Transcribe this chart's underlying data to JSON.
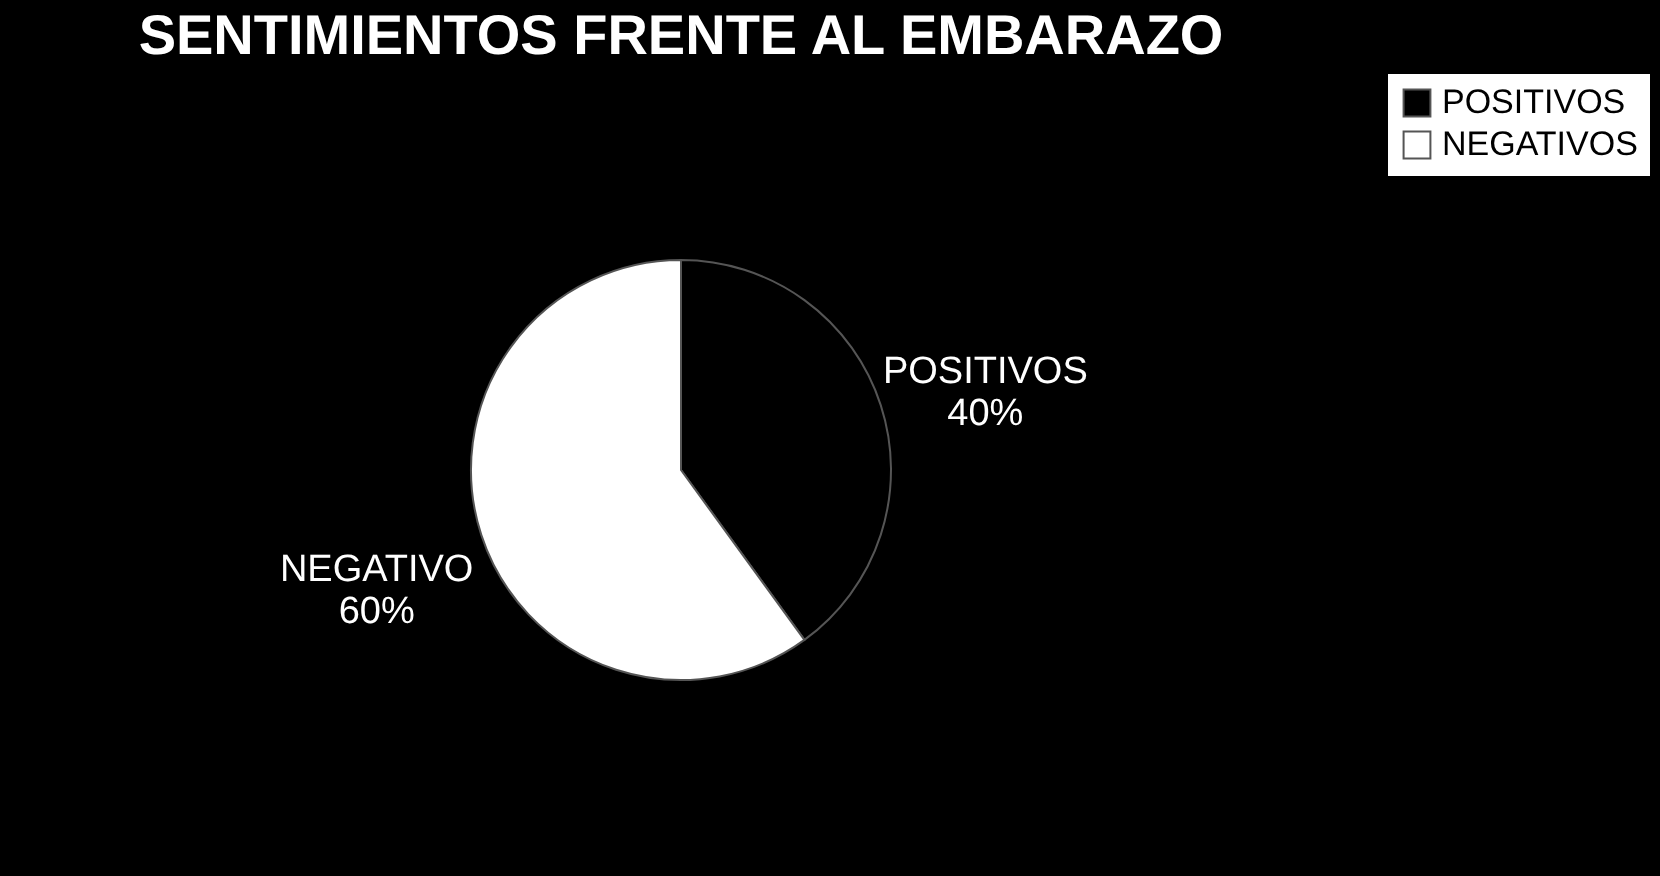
{
  "chart_data": {
    "type": "pie",
    "title": "SENTIMIENTOS FRENTE AL EMBARAZO",
    "categories": [
      "POSITIVOS",
      "NEGATIVOS"
    ],
    "values": [
      40,
      60
    ],
    "colors": [
      "#000000",
      "#ffffff"
    ],
    "value_labels": [
      "POSITIVOS\n40%",
      "NEGATIVO\n60%"
    ],
    "legend": "right"
  }
}
